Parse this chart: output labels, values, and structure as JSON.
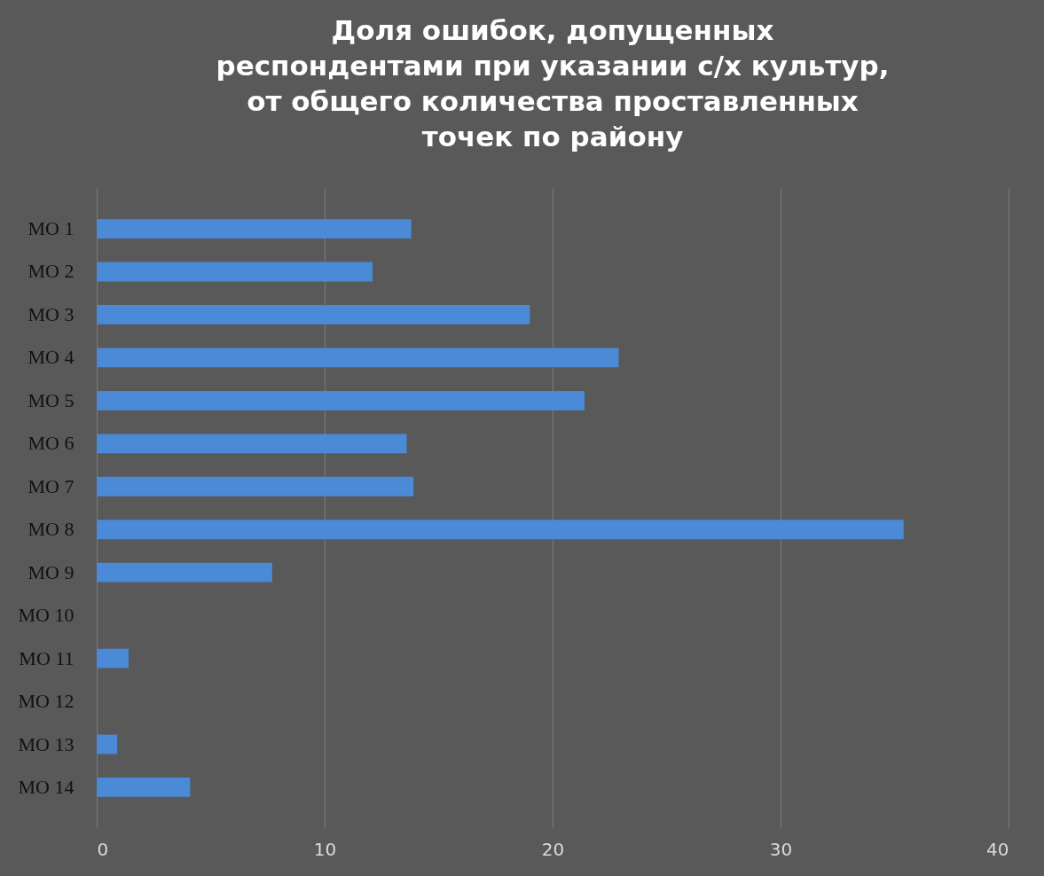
{
  "chart_data": {
    "type": "bar",
    "orientation": "horizontal",
    "title": "Доля ошибок, допущенных\nреспондентами при указании с/х культур,\nот общего количества проставленных\nточек по району",
    "categories": [
      "MO 1",
      "MO 2",
      "MO 3",
      "MO 4",
      "MO 5",
      "MO 6",
      "MO 7",
      "MO 8",
      "MO 9",
      "MO 10",
      "MO 11",
      "MO 12",
      "MO 13",
      "MO 14"
    ],
    "values": [
      13.8,
      12.1,
      19.0,
      22.9,
      21.4,
      13.6,
      13.9,
      35.4,
      7.7,
      0,
      1.4,
      0,
      0.9,
      4.1
    ],
    "color": "#4a8ad6",
    "xlim": [
      0,
      40
    ],
    "xticks": [
      0,
      10,
      20,
      30,
      40
    ],
    "grid": "x"
  }
}
